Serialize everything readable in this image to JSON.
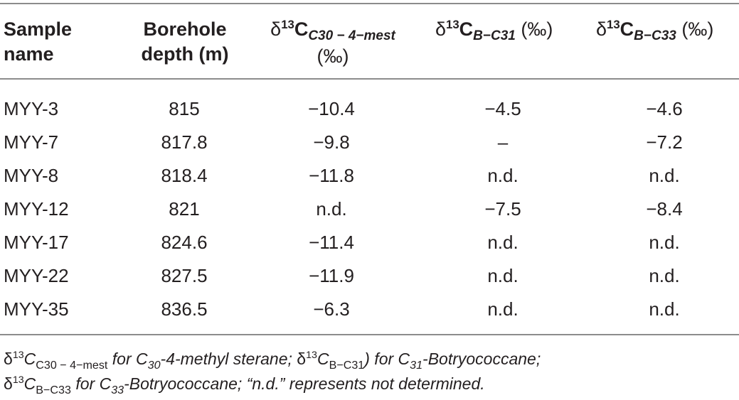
{
  "header": {
    "sample_name_1": "Sample",
    "sample_name_2": "name",
    "depth_1": "Borehole",
    "depth_2": "depth (m)",
    "c30_delta": "δ",
    "c30_sup": "13",
    "c30_c": "C",
    "c30_sub": "C30 − 4−mest",
    "c30_unit": "(‰)",
    "c31_delta": "δ",
    "c31_sup": "13",
    "c31_c": "C",
    "c31_sub": "B−C31",
    "c31_unit": " (‰)",
    "c33_delta": "δ",
    "c33_sup": "13",
    "c33_c": "C",
    "c33_sub": "B−C33",
    "c33_unit": " (‰)"
  },
  "rows": [
    {
      "sample": "MYY-3",
      "depth": "815",
      "c30": "−10.4",
      "c31": "−4.5",
      "c33": "−4.6"
    },
    {
      "sample": "MYY-7",
      "depth": "817.8",
      "c30": "−9.8",
      "c31": "–",
      "c33": "−7.2"
    },
    {
      "sample": "MYY-8",
      "depth": "818.4",
      "c30": "−11.8",
      "c31": "n.d.",
      "c33": "n.d."
    },
    {
      "sample": "MYY-12",
      "depth": "821",
      "c30": "n.d.",
      "c31": "−7.5",
      "c33": "−8.4"
    },
    {
      "sample": "MYY-17",
      "depth": "824.6",
      "c30": "−11.4",
      "c31": "n.d.",
      "c33": "n.d."
    },
    {
      "sample": "MYY-22",
      "depth": "827.5",
      "c30": "−11.9",
      "c31": "n.d.",
      "c33": "n.d."
    },
    {
      "sample": "MYY-35",
      "depth": "836.5",
      "c30": "−6.3",
      "c31": "n.d.",
      "c33": "n.d."
    }
  ],
  "footnote": {
    "d1": "δ",
    "s1": "13",
    "c1": "C",
    "sub1": "C30 − 4−mest",
    "t1": " for C",
    "n30": "30",
    "t2": "-4-methyl sterane; ",
    "d2": "δ",
    "s2": "13",
    "c2": "C",
    "sub2": "B−C31",
    "t3": ") for C",
    "n31": "31",
    "t4": "-Botryococcane;",
    "d3": "δ",
    "s3": "13",
    "c3": "C",
    "sub3": "B−C33",
    "t5": " for C",
    "n33": "33",
    "t6": "-Botryococcane; “n.d.” represents not determined."
  }
}
